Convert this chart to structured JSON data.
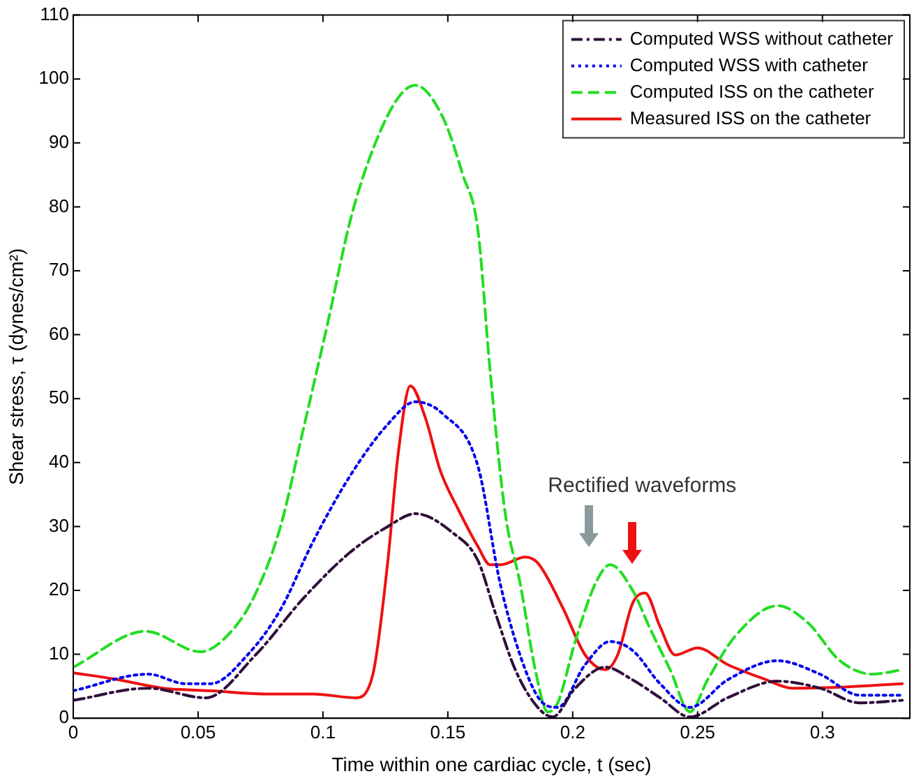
{
  "chart_data": {
    "type": "line",
    "xlabel": "Time within one cardiac cycle, t (sec)",
    "ylabel": "Shear stress, τ (dynes/cm²)",
    "xlim": [
      0,
      0.335
    ],
    "xticks": [
      0,
      0.05,
      0.1,
      0.15,
      0.2,
      0.25,
      0.3
    ],
    "ylim": [
      0,
      110
    ],
    "yticks": [
      0,
      10,
      20,
      30,
      40,
      50,
      60,
      70,
      80,
      90,
      100,
      110
    ],
    "grid": false,
    "legend": "top right",
    "marker": "none",
    "annotations": [
      "Rectified waveforms"
    ],
    "series": [
      {
        "name": "Computed WSS without catheter",
        "color": "#2e0f3a",
        "line_style": "dashdot",
        "x": [
          0,
          0.03,
          0.053,
          0.073,
          0.092,
          0.111,
          0.126,
          0.137,
          0.152,
          0.162,
          0.169,
          0.177,
          0.186,
          0.192,
          0.201,
          0.213,
          0.224,
          0.235,
          0.247,
          0.262,
          0.282,
          0.299,
          0.315,
          0.332
        ],
        "values": [
          2.8,
          4.7,
          3.2,
          9.9,
          18.7,
          26,
          30,
          32,
          29,
          24.7,
          16.5,
          7.6,
          1.7,
          0.2,
          4.7,
          8,
          6,
          3.2,
          0.2,
          3.2,
          5.8,
          4.7,
          2.4,
          2.8
        ]
      },
      {
        "name": "Computed WSS with catheter",
        "color": "#0000ee",
        "line_style": "dotted",
        "x": [
          0,
          0.03,
          0.045,
          0.055,
          0.07,
          0.083,
          0.096,
          0.111,
          0.126,
          0.137,
          0.148,
          0.162,
          0.171,
          0.181,
          0.188,
          0.194,
          0.205,
          0.215,
          0.224,
          0.235,
          0.247,
          0.262,
          0.282,
          0.299,
          0.315,
          0.332
        ],
        "values": [
          4.3,
          6.9,
          5.4,
          5.4,
          10,
          17,
          27.6,
          38,
          46,
          49.5,
          47.6,
          39.5,
          21,
          7.6,
          2.4,
          1.7,
          8.4,
          12,
          10.6,
          5.4,
          1.7,
          6,
          9,
          6.9,
          3.6,
          3.6
        ]
      },
      {
        "name": "Computed ISS on the catheter",
        "color": "#22dd22",
        "line_style": "dashed",
        "x": [
          0,
          0.029,
          0.051,
          0.064,
          0.073,
          0.083,
          0.092,
          0.102,
          0.111,
          0.12,
          0.13,
          0.137,
          0.148,
          0.156,
          0.162,
          0.167,
          0.173,
          0.179,
          0.185,
          0.19,
          0.194,
          0.201,
          0.209,
          0.215,
          0.224,
          0.231,
          0.239,
          0.247,
          0.254,
          0.265,
          0.282,
          0.294,
          0.307,
          0.32,
          0.332
        ],
        "values": [
          8,
          13.6,
          10.4,
          13.9,
          19.5,
          30,
          45,
          62,
          78,
          89,
          97,
          99,
          94,
          85,
          76.5,
          54,
          32,
          21,
          7.6,
          1,
          2.4,
          12,
          21,
          24,
          20,
          14,
          7.6,
          1,
          6,
          12.8,
          17.6,
          15,
          9,
          6.9,
          7.6
        ]
      },
      {
        "name": "Measured ISS on the catheter",
        "color": "#ee1111",
        "line_style": "solid",
        "x": [
          0,
          0.017,
          0.036,
          0.055,
          0.077,
          0.096,
          0.113,
          0.12,
          0.126,
          0.13,
          0.135,
          0.141,
          0.147,
          0.154,
          0.162,
          0.167,
          0.171,
          0.181,
          0.186,
          0.196,
          0.205,
          0.213,
          0.218,
          0.224,
          0.229,
          0.235,
          0.241,
          0.25,
          0.262,
          0.277,
          0.288,
          0.303,
          0.332
        ],
        "values": [
          7.1,
          6.1,
          4.7,
          4.3,
          3.8,
          3.8,
          3.2,
          6.9,
          24.7,
          41,
          52,
          47,
          38.7,
          32.8,
          26.9,
          24,
          24,
          25.2,
          24.3,
          17.3,
          9.9,
          7.6,
          9.9,
          18,
          19.6,
          14.3,
          9.9,
          11,
          8.4,
          6.1,
          4.7,
          4.8,
          5.4
        ]
      }
    ]
  }
}
